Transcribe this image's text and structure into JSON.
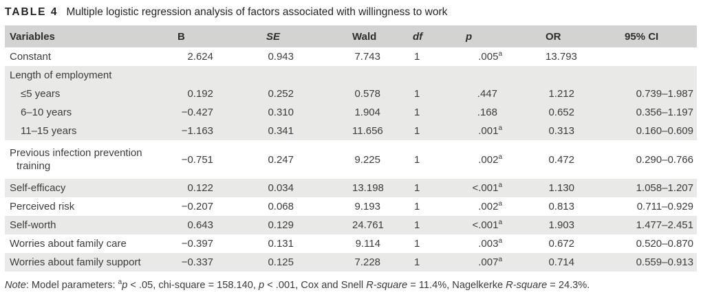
{
  "caption": {
    "label": "TABLE 4",
    "title": "Multiple logistic regression analysis of factors associated with willingness to work"
  },
  "colors": {
    "header_bg": "#d3d3d1",
    "stripe_bg": "#e9e9e7",
    "text": "#3c3c3b"
  },
  "table": {
    "columns": [
      {
        "key": "variable",
        "label": "Variables",
        "italic": false
      },
      {
        "key": "b",
        "label": "B",
        "italic": false
      },
      {
        "key": "se",
        "label": "SE",
        "italic": true
      },
      {
        "key": "wald",
        "label": "Wald",
        "italic": false
      },
      {
        "key": "df",
        "label": "df",
        "italic": true
      },
      {
        "key": "p",
        "label": "p",
        "italic": true
      },
      {
        "key": "or",
        "label": "OR",
        "italic": false
      },
      {
        "key": "ci",
        "label": "95% CI",
        "italic": false
      }
    ],
    "rows": [
      {
        "variable": "Constant",
        "indent": 0,
        "wrap": false,
        "group": false,
        "shade": false,
        "b": "2.624",
        "se": "0.943",
        "wald": "7.743",
        "df": "1",
        "p": ".005",
        "p_sup": "a",
        "or": "13.793",
        "ci": ""
      },
      {
        "variable": "Length of employment",
        "indent": 0,
        "wrap": false,
        "group": true,
        "shade": true,
        "b": "",
        "se": "",
        "wald": "",
        "df": "",
        "p": "",
        "p_sup": "",
        "or": "",
        "ci": ""
      },
      {
        "variable": "≤5 years",
        "indent": 1,
        "wrap": false,
        "group": false,
        "shade": true,
        "b": "0.192",
        "se": "0.252",
        "wald": "0.578",
        "df": "1",
        "p": ".447",
        "p_sup": "",
        "or": "1.212",
        "ci": "0.739–1.987"
      },
      {
        "variable": "6–10 years",
        "indent": 1,
        "wrap": false,
        "group": false,
        "shade": true,
        "b": "−0.427",
        "se": "0.310",
        "wald": "1.904",
        "df": "1",
        "p": ".168",
        "p_sup": "",
        "or": "0.652",
        "ci": "0.356–1.197"
      },
      {
        "variable": "11–15 years",
        "indent": 1,
        "wrap": false,
        "group": false,
        "shade": true,
        "b": "−1.163",
        "se": "0.341",
        "wald": "11.656",
        "df": "1",
        "p": ".001",
        "p_sup": "a",
        "or": "0.313",
        "ci": "0.160–0.609"
      },
      {
        "variable": "Previous infection prevention training",
        "indent": 0,
        "wrap": true,
        "group": false,
        "shade": false,
        "b": "−0.751",
        "se": "0.247",
        "wald": "9.225",
        "df": "1",
        "p": ".002",
        "p_sup": "a",
        "or": "0.472",
        "ci": "0.290–0.766"
      },
      {
        "variable": "Self-efficacy",
        "indent": 0,
        "wrap": false,
        "group": false,
        "shade": true,
        "b": "0.122",
        "se": "0.034",
        "wald": "13.198",
        "df": "1",
        "p": "<.001",
        "p_sup": "a",
        "or": "1.130",
        "ci": "1.058–1.207"
      },
      {
        "variable": "Perceived risk",
        "indent": 0,
        "wrap": false,
        "group": false,
        "shade": false,
        "b": "−0.207",
        "se": "0.068",
        "wald": "9.193",
        "df": "1",
        "p": ".002",
        "p_sup": "a",
        "or": "0.813",
        "ci": "0.711–0.929"
      },
      {
        "variable": "Self-worth",
        "indent": 0,
        "wrap": false,
        "group": false,
        "shade": true,
        "b": "0.643",
        "se": "0.129",
        "wald": "24.761",
        "df": "1",
        "p": "<.001",
        "p_sup": "a",
        "or": "1.903",
        "ci": "1.477–2.451"
      },
      {
        "variable": "Worries about family care",
        "indent": 0,
        "wrap": false,
        "group": false,
        "shade": false,
        "b": "−0.397",
        "se": "0.131",
        "wald": "9.114",
        "df": "1",
        "p": ".003",
        "p_sup": "a",
        "or": "0.672",
        "ci": "0.520–0.870"
      },
      {
        "variable": "Worries about family support",
        "indent": 0,
        "wrap": false,
        "group": false,
        "shade": true,
        "b": "−0.337",
        "se": "0.125",
        "wald": "7.228",
        "df": "1",
        "p": ".007",
        "p_sup": "a",
        "or": "0.714",
        "ci": "0.559–0.913"
      }
    ]
  },
  "footnote": {
    "segments": [
      {
        "text": "Note",
        "italic": true
      },
      {
        "text": ": Model parameters: ",
        "italic": false
      },
      {
        "text": "a",
        "sup": true
      },
      {
        "text": "p",
        "italic": true
      },
      {
        "text": " < .05, chi-square = 158.140, ",
        "italic": false
      },
      {
        "text": "p",
        "italic": true
      },
      {
        "text": " < .001, Cox and Snell ",
        "italic": false
      },
      {
        "text": "R-square",
        "italic": true
      },
      {
        "text": " = 11.4%, Nagelkerke ",
        "italic": false
      },
      {
        "text": "R-square",
        "italic": true
      },
      {
        "text": " = 24.3%.",
        "italic": false
      }
    ]
  }
}
